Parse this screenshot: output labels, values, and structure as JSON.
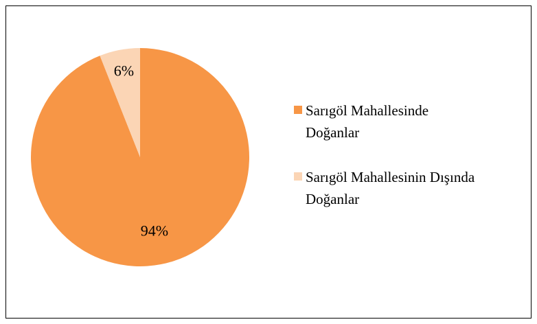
{
  "chart_data": {
    "type": "pie",
    "categories": [
      "Sarıgöl Mahallesinde Doğanlar",
      "Sarıgöl Mahallesinin Dışında Doğanlar"
    ],
    "values": [
      94,
      6
    ],
    "value_labels": [
      "94%",
      "6%"
    ],
    "colors": [
      "#f79646",
      "#fbd5b5"
    ],
    "legend": "right"
  }
}
